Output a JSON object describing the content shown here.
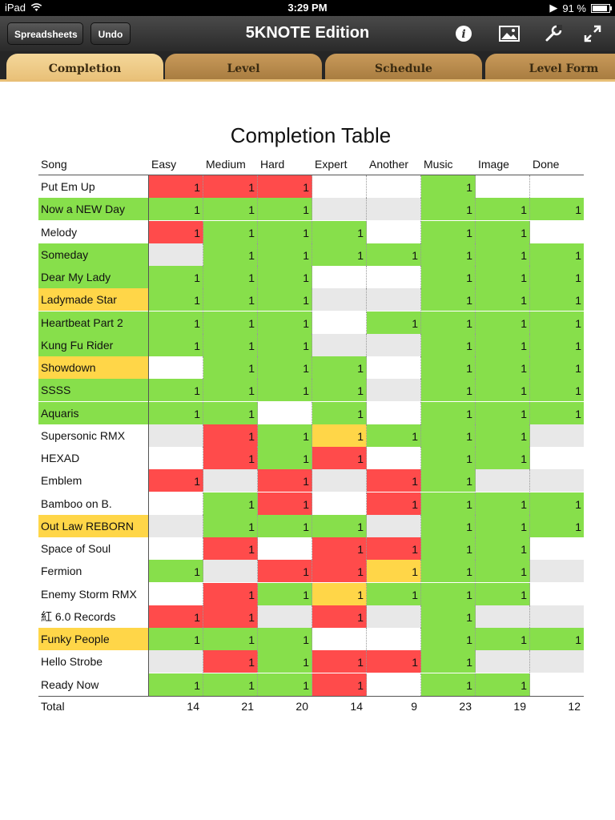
{
  "status": {
    "device": "iPad",
    "time": "3:29 PM",
    "battery": "91 %",
    "battery_level": 0.91
  },
  "toolbar": {
    "spreadsheets_label": "Spreadsheets",
    "undo_label": "Undo",
    "title": "5KNOTE Edition"
  },
  "tabs": [
    {
      "label": "Completion",
      "active": true
    },
    {
      "label": "Level",
      "active": false
    },
    {
      "label": "Schedule",
      "active": false
    },
    {
      "label": "Level Form",
      "active": false
    }
  ],
  "table": {
    "title": "Completion Table",
    "columns": [
      "Song",
      "Easy",
      "Medium",
      "Hard",
      "Expert",
      "Another",
      "Music",
      "Image",
      "Done"
    ],
    "colors": {
      "red": "#ff4b4b",
      "green": "#87df4b",
      "yellow": "#ffd648",
      "gray": "#e8e8e8",
      "white": "#ffffff"
    },
    "rows": [
      {
        "song": "Put Em Up",
        "song_color": "w",
        "cells": [
          [
            "r",
            "1"
          ],
          [
            "r",
            "1"
          ],
          [
            "r",
            "1"
          ],
          [
            "w",
            ""
          ],
          [
            "w",
            ""
          ],
          [
            "g",
            "1"
          ],
          [
            "w",
            ""
          ],
          [
            "w",
            ""
          ]
        ]
      },
      {
        "song": "Now a NEW Day",
        "song_color": "g",
        "cells": [
          [
            "g",
            "1"
          ],
          [
            "g",
            "1"
          ],
          [
            "g",
            "1"
          ],
          [
            "e",
            ""
          ],
          [
            "e",
            ""
          ],
          [
            "g",
            "1"
          ],
          [
            "g",
            "1"
          ],
          [
            "g",
            "1"
          ]
        ]
      },
      {
        "song": "Melody",
        "song_color": "w",
        "cells": [
          [
            "r",
            "1"
          ],
          [
            "g",
            "1"
          ],
          [
            "g",
            "1"
          ],
          [
            "g",
            "1"
          ],
          [
            "w",
            ""
          ],
          [
            "g",
            "1"
          ],
          [
            "g",
            "1"
          ],
          [
            "w",
            ""
          ]
        ]
      },
      {
        "song": "Someday",
        "song_color": "g",
        "cells": [
          [
            "e",
            ""
          ],
          [
            "g",
            "1"
          ],
          [
            "g",
            "1"
          ],
          [
            "g",
            "1"
          ],
          [
            "g",
            "1"
          ],
          [
            "g",
            "1"
          ],
          [
            "g",
            "1"
          ],
          [
            "g",
            "1"
          ]
        ]
      },
      {
        "song": "Dear My Lady",
        "song_color": "g",
        "cells": [
          [
            "g",
            "1"
          ],
          [
            "g",
            "1"
          ],
          [
            "g",
            "1"
          ],
          [
            "w",
            ""
          ],
          [
            "w",
            ""
          ],
          [
            "g",
            "1"
          ],
          [
            "g",
            "1"
          ],
          [
            "g",
            "1"
          ]
        ]
      },
      {
        "song": "Ladymade Star",
        "song_color": "y",
        "cells": [
          [
            "g",
            "1"
          ],
          [
            "g",
            "1"
          ],
          [
            "g",
            "1"
          ],
          [
            "e",
            ""
          ],
          [
            "e",
            ""
          ],
          [
            "g",
            "1"
          ],
          [
            "g",
            "1"
          ],
          [
            "g",
            "1"
          ]
        ]
      },
      {
        "song": "Heartbeat Part 2",
        "song_color": "g",
        "cells": [
          [
            "g",
            "1"
          ],
          [
            "g",
            "1"
          ],
          [
            "g",
            "1"
          ],
          [
            "w",
            ""
          ],
          [
            "g",
            "1"
          ],
          [
            "g",
            "1"
          ],
          [
            "g",
            "1"
          ],
          [
            "g",
            "1"
          ]
        ]
      },
      {
        "song": "Kung Fu Rider",
        "song_color": "g",
        "cells": [
          [
            "g",
            "1"
          ],
          [
            "g",
            "1"
          ],
          [
            "g",
            "1"
          ],
          [
            "e",
            ""
          ],
          [
            "e",
            ""
          ],
          [
            "g",
            "1"
          ],
          [
            "g",
            "1"
          ],
          [
            "g",
            "1"
          ]
        ]
      },
      {
        "song": "Showdown",
        "song_color": "y",
        "cells": [
          [
            "w",
            ""
          ],
          [
            "g",
            "1"
          ],
          [
            "g",
            "1"
          ],
          [
            "g",
            "1"
          ],
          [
            "w",
            ""
          ],
          [
            "g",
            "1"
          ],
          [
            "g",
            "1"
          ],
          [
            "g",
            "1"
          ]
        ]
      },
      {
        "song": "SSSS",
        "song_color": "g",
        "cells": [
          [
            "g",
            "1"
          ],
          [
            "g",
            "1"
          ],
          [
            "g",
            "1"
          ],
          [
            "g",
            "1"
          ],
          [
            "e",
            ""
          ],
          [
            "g",
            "1"
          ],
          [
            "g",
            "1"
          ],
          [
            "g",
            "1"
          ]
        ]
      },
      {
        "song": "Aquaris",
        "song_color": "g",
        "cells": [
          [
            "g",
            "1"
          ],
          [
            "g",
            "1"
          ],
          [
            "w",
            ""
          ],
          [
            "g",
            "1"
          ],
          [
            "w",
            ""
          ],
          [
            "g",
            "1"
          ],
          [
            "g",
            "1"
          ],
          [
            "g",
            "1"
          ]
        ]
      },
      {
        "song": "Supersonic RMX",
        "song_color": "w",
        "cells": [
          [
            "e",
            ""
          ],
          [
            "r",
            "1"
          ],
          [
            "g",
            "1"
          ],
          [
            "y",
            "1"
          ],
          [
            "g",
            "1"
          ],
          [
            "g",
            "1"
          ],
          [
            "g",
            "1"
          ],
          [
            "e",
            ""
          ]
        ]
      },
      {
        "song": "HEXAD",
        "song_color": "w",
        "cells": [
          [
            "w",
            ""
          ],
          [
            "r",
            "1"
          ],
          [
            "g",
            "1"
          ],
          [
            "r",
            "1"
          ],
          [
            "w",
            ""
          ],
          [
            "g",
            "1"
          ],
          [
            "g",
            "1"
          ],
          [
            "w",
            ""
          ]
        ]
      },
      {
        "song": "Emblem",
        "song_color": "w",
        "cells": [
          [
            "r",
            "1"
          ],
          [
            "e",
            ""
          ],
          [
            "r",
            "1"
          ],
          [
            "e",
            ""
          ],
          [
            "r",
            "1"
          ],
          [
            "g",
            "1"
          ],
          [
            "e",
            ""
          ],
          [
            "e",
            ""
          ]
        ]
      },
      {
        "song": "Bamboo on B.",
        "song_color": "w",
        "cells": [
          [
            "w",
            ""
          ],
          [
            "g",
            "1"
          ],
          [
            "r",
            "1"
          ],
          [
            "w",
            ""
          ],
          [
            "r",
            "1"
          ],
          [
            "g",
            "1"
          ],
          [
            "g",
            "1"
          ],
          [
            "g",
            "1"
          ]
        ]
      },
      {
        "song": "Out Law REBORN",
        "song_color": "y",
        "cells": [
          [
            "e",
            ""
          ],
          [
            "g",
            "1"
          ],
          [
            "g",
            "1"
          ],
          [
            "g",
            "1"
          ],
          [
            "e",
            ""
          ],
          [
            "g",
            "1"
          ],
          [
            "g",
            "1"
          ],
          [
            "g",
            "1"
          ]
        ]
      },
      {
        "song": "Space of Soul",
        "song_color": "w",
        "cells": [
          [
            "w",
            ""
          ],
          [
            "r",
            "1"
          ],
          [
            "w",
            ""
          ],
          [
            "r",
            "1"
          ],
          [
            "r",
            "1"
          ],
          [
            "g",
            "1"
          ],
          [
            "g",
            "1"
          ],
          [
            "w",
            ""
          ]
        ]
      },
      {
        "song": "Fermion",
        "song_color": "w",
        "cells": [
          [
            "g",
            "1"
          ],
          [
            "e",
            ""
          ],
          [
            "r",
            "1"
          ],
          [
            "r",
            "1"
          ],
          [
            "y",
            "1"
          ],
          [
            "g",
            "1"
          ],
          [
            "g",
            "1"
          ],
          [
            "e",
            ""
          ]
        ]
      },
      {
        "song": "Enemy Storm RMX",
        "song_color": "w",
        "cells": [
          [
            "w",
            ""
          ],
          [
            "r",
            "1"
          ],
          [
            "g",
            "1"
          ],
          [
            "y",
            "1"
          ],
          [
            "g",
            "1"
          ],
          [
            "g",
            "1"
          ],
          [
            "g",
            "1"
          ],
          [
            "w",
            ""
          ]
        ]
      },
      {
        "song": "紅 6.0 Records",
        "song_color": "w",
        "cells": [
          [
            "r",
            "1"
          ],
          [
            "r",
            "1"
          ],
          [
            "e",
            ""
          ],
          [
            "r",
            "1"
          ],
          [
            "e",
            ""
          ],
          [
            "g",
            "1"
          ],
          [
            "e",
            ""
          ],
          [
            "e",
            ""
          ]
        ]
      },
      {
        "song": "Funky People",
        "song_color": "y",
        "cells": [
          [
            "g",
            "1"
          ],
          [
            "g",
            "1"
          ],
          [
            "g",
            "1"
          ],
          [
            "w",
            ""
          ],
          [
            "w",
            ""
          ],
          [
            "g",
            "1"
          ],
          [
            "g",
            "1"
          ],
          [
            "g",
            "1"
          ]
        ]
      },
      {
        "song": "Hello Strobe",
        "song_color": "w",
        "cells": [
          [
            "e",
            ""
          ],
          [
            "r",
            "1"
          ],
          [
            "g",
            "1"
          ],
          [
            "r",
            "1"
          ],
          [
            "r",
            "1"
          ],
          [
            "g",
            "1"
          ],
          [
            "e",
            ""
          ],
          [
            "e",
            ""
          ]
        ]
      },
      {
        "song": "Ready Now",
        "song_color": "w",
        "cells": [
          [
            "g",
            "1"
          ],
          [
            "g",
            "1"
          ],
          [
            "g",
            "1"
          ],
          [
            "r",
            "1"
          ],
          [
            "w",
            ""
          ],
          [
            "g",
            "1"
          ],
          [
            "g",
            "1"
          ],
          [
            "w",
            ""
          ]
        ]
      }
    ],
    "totals_label": "Total",
    "totals": [
      "14",
      "21",
      "20",
      "14",
      "9",
      "23",
      "19",
      "12"
    ]
  }
}
